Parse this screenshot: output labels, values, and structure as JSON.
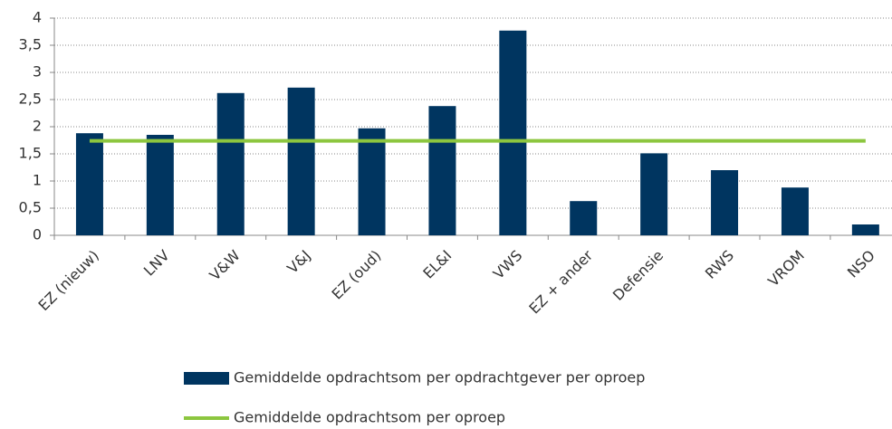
{
  "chart_data": {
    "type": "bar",
    "categories": [
      "EZ (nieuw)",
      "LNV",
      "V&W",
      "V&J",
      "EZ (oud)",
      "EL&I",
      "VWS",
      "EZ + ander",
      "Defensie",
      "RWS",
      "VROM",
      "NSO"
    ],
    "series": [
      {
        "name": "Gemiddelde opdrachtsom per opdrachtgever per oproep",
        "type": "bar",
        "color": "#003560",
        "values": [
          1.88,
          1.85,
          2.62,
          2.72,
          1.97,
          2.38,
          3.77,
          0.63,
          1.51,
          1.2,
          0.88,
          0.2
        ]
      },
      {
        "name": "Gemiddelde opdrachtsom per oproep",
        "type": "line",
        "color": "#8cc63f",
        "values": [
          1.74,
          1.74,
          1.74,
          1.74,
          1.74,
          1.74,
          1.74,
          1.74,
          1.74,
          1.74,
          1.74,
          1.74
        ]
      }
    ],
    "ylim": [
      0,
      4
    ],
    "yticks": [
      0,
      {
        "value": 0.5,
        "label": "0,5"
      },
      1,
      {
        "value": 1.5,
        "label": "1,5"
      },
      2,
      {
        "value": 2.5,
        "label": "2,5"
      },
      3,
      {
        "value": 3.5,
        "label": "3,5"
      },
      4
    ],
    "grid": true
  }
}
